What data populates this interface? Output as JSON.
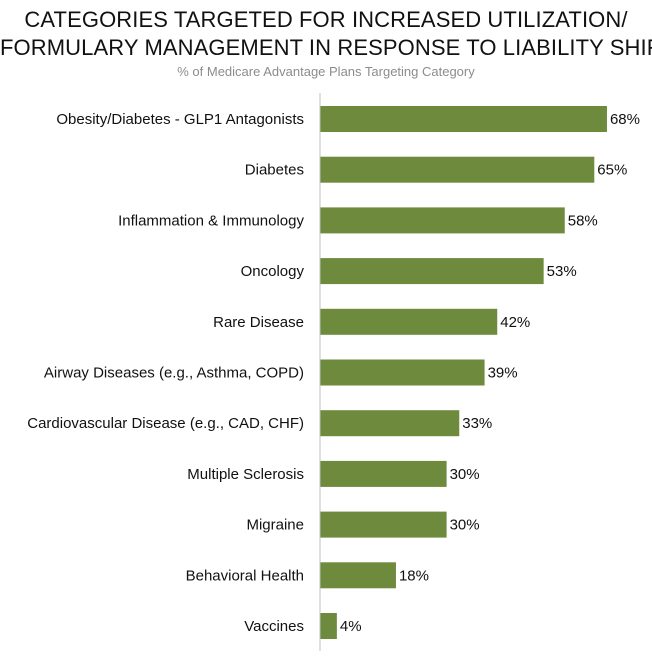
{
  "chart_data": {
    "type": "bar",
    "orientation": "horizontal",
    "title_lines": [
      "CATEGORIES TARGETED FOR INCREASED UTILIZATION/",
      "FORMULARY MANAGEMENT IN RESPONSE TO LIABILITY SHIFT"
    ],
    "subtitle": "% of  Medicare Advantage Plans Targeting Category",
    "categories": [
      "Obesity/Diabetes - GLP1 Antagonists",
      "Diabetes",
      "Inflammation & Immunology",
      "Oncology",
      "Rare Disease",
      "Airway Diseases (e.g., Asthma, COPD)",
      "Cardiovascular Disease (e.g., CAD, CHF)",
      "Multiple Sclerosis",
      "Migraine",
      "Behavioral Health",
      "Vaccines"
    ],
    "values": [
      68,
      65,
      58,
      53,
      42,
      39,
      33,
      30,
      30,
      18,
      4
    ],
    "value_labels": [
      "68%",
      "65%",
      "58%",
      "53%",
      "42%",
      "39%",
      "33%",
      "30%",
      "30%",
      "18%",
      "4%"
    ],
    "xlim": [
      0,
      100
    ],
    "grid": false,
    "legend": "none",
    "bar_color": "#6e8b3d",
    "axis_color": "#bfbfbf"
  }
}
